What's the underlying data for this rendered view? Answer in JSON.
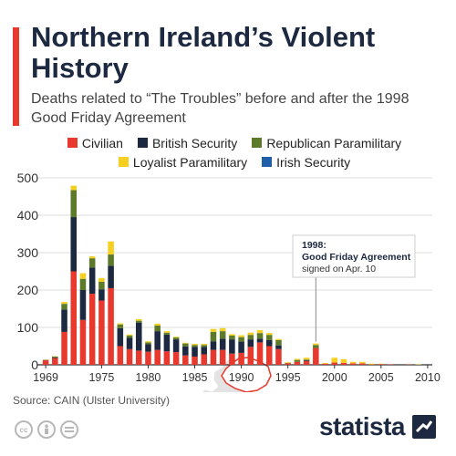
{
  "header": {
    "title": "Northern Ireland’s Violent History",
    "subtitle": "Deaths related to “The Troubles” before and after the 1998 Good Friday Agreement"
  },
  "colors": {
    "accent": "#e8392e",
    "Civilian": "#e8392e",
    "British Security": "#1c2940",
    "Republican Paramilitary": "#5c7a2a",
    "Loyalist Paramilitary": "#f5d022",
    "Irish Security": "#1f5ea8"
  },
  "legend": {
    "row1": [
      "Civilian",
      "British Security",
      "Republican Paramilitary"
    ],
    "row2": [
      "Loyalist Paramilitary",
      "Irish Security"
    ]
  },
  "annotation": {
    "year": 1998,
    "line1": "1998:",
    "line2": "Good Friday Agreement",
    "line3": "signed on Apr. 10"
  },
  "source": "Source: CAIN (Ulster University)",
  "brand": "statista",
  "cc_icons": [
    "cc-icon",
    "person-icon",
    "equals-icon"
  ],
  "map_icon": "ireland-map-northern-ireland-outlined",
  "chart_data": {
    "type": "bar",
    "stacked": true,
    "x": [
      1969,
      1970,
      1971,
      1972,
      1973,
      1974,
      1975,
      1976,
      1977,
      1978,
      1979,
      1980,
      1981,
      1982,
      1983,
      1984,
      1985,
      1986,
      1987,
      1988,
      1989,
      1990,
      1991,
      1992,
      1993,
      1994,
      1995,
      1996,
      1997,
      1998,
      1999,
      2000,
      2001,
      2002,
      2003,
      2004,
      2005,
      2006,
      2007,
      2008,
      2009,
      2010
    ],
    "series": [
      {
        "name": "Civilian",
        "values": [
          12,
          18,
          88,
          250,
          120,
          190,
          172,
          205,
          50,
          42,
          38,
          35,
          40,
          36,
          34,
          25,
          22,
          28,
          40,
          40,
          30,
          32,
          48,
          60,
          50,
          42,
          4,
          8,
          10,
          45,
          3,
          6,
          5,
          4,
          4,
          1,
          2,
          1,
          0,
          1,
          0,
          0
        ]
      },
      {
        "name": "British Security",
        "values": [
          1,
          2,
          60,
          145,
          80,
          70,
          30,
          60,
          48,
          30,
          75,
          20,
          50,
          45,
          34,
          24,
          26,
          20,
          23,
          30,
          38,
          30,
          20,
          10,
          16,
          10,
          0,
          0,
          2,
          0,
          0,
          0,
          0,
          0,
          0,
          0,
          0,
          0,
          0,
          0,
          0,
          1
        ]
      },
      {
        "name": "Republican Paramilitary",
        "values": [
          0,
          2,
          15,
          72,
          30,
          25,
          20,
          30,
          10,
          6,
          5,
          5,
          15,
          5,
          5,
          8,
          5,
          5,
          25,
          20,
          10,
          12,
          12,
          15,
          14,
          14,
          1,
          5,
          2,
          8,
          0,
          0,
          0,
          0,
          0,
          0,
          0,
          0,
          0,
          0,
          0,
          0
        ]
      },
      {
        "name": "Loyalist Paramilitary",
        "values": [
          1,
          1,
          5,
          12,
          15,
          5,
          10,
          35,
          3,
          3,
          4,
          3,
          5,
          4,
          2,
          2,
          3,
          3,
          8,
          8,
          4,
          5,
          6,
          8,
          5,
          3,
          2,
          3,
          5,
          4,
          2,
          13,
          10,
          4,
          4,
          2,
          1,
          0,
          0,
          0,
          1,
          0
        ]
      },
      {
        "name": "Irish Security",
        "values": [
          0,
          0,
          0,
          0,
          0,
          0,
          0,
          0,
          0,
          0,
          0,
          0,
          0,
          0,
          0,
          0,
          0,
          0,
          0,
          0,
          0,
          0,
          0,
          0,
          0,
          0,
          0,
          0,
          0,
          0,
          0,
          0,
          0,
          0,
          0,
          0,
          0,
          0,
          0,
          0,
          0,
          0
        ]
      }
    ],
    "x_ticks": [
      1969,
      1975,
      1980,
      1985,
      1990,
      1995,
      2000,
      2005,
      2010
    ],
    "y_ticks": [
      0,
      100,
      200,
      300,
      400,
      500
    ],
    "ylim": [
      0,
      500
    ],
    "grid": true,
    "legend_position": "top"
  }
}
